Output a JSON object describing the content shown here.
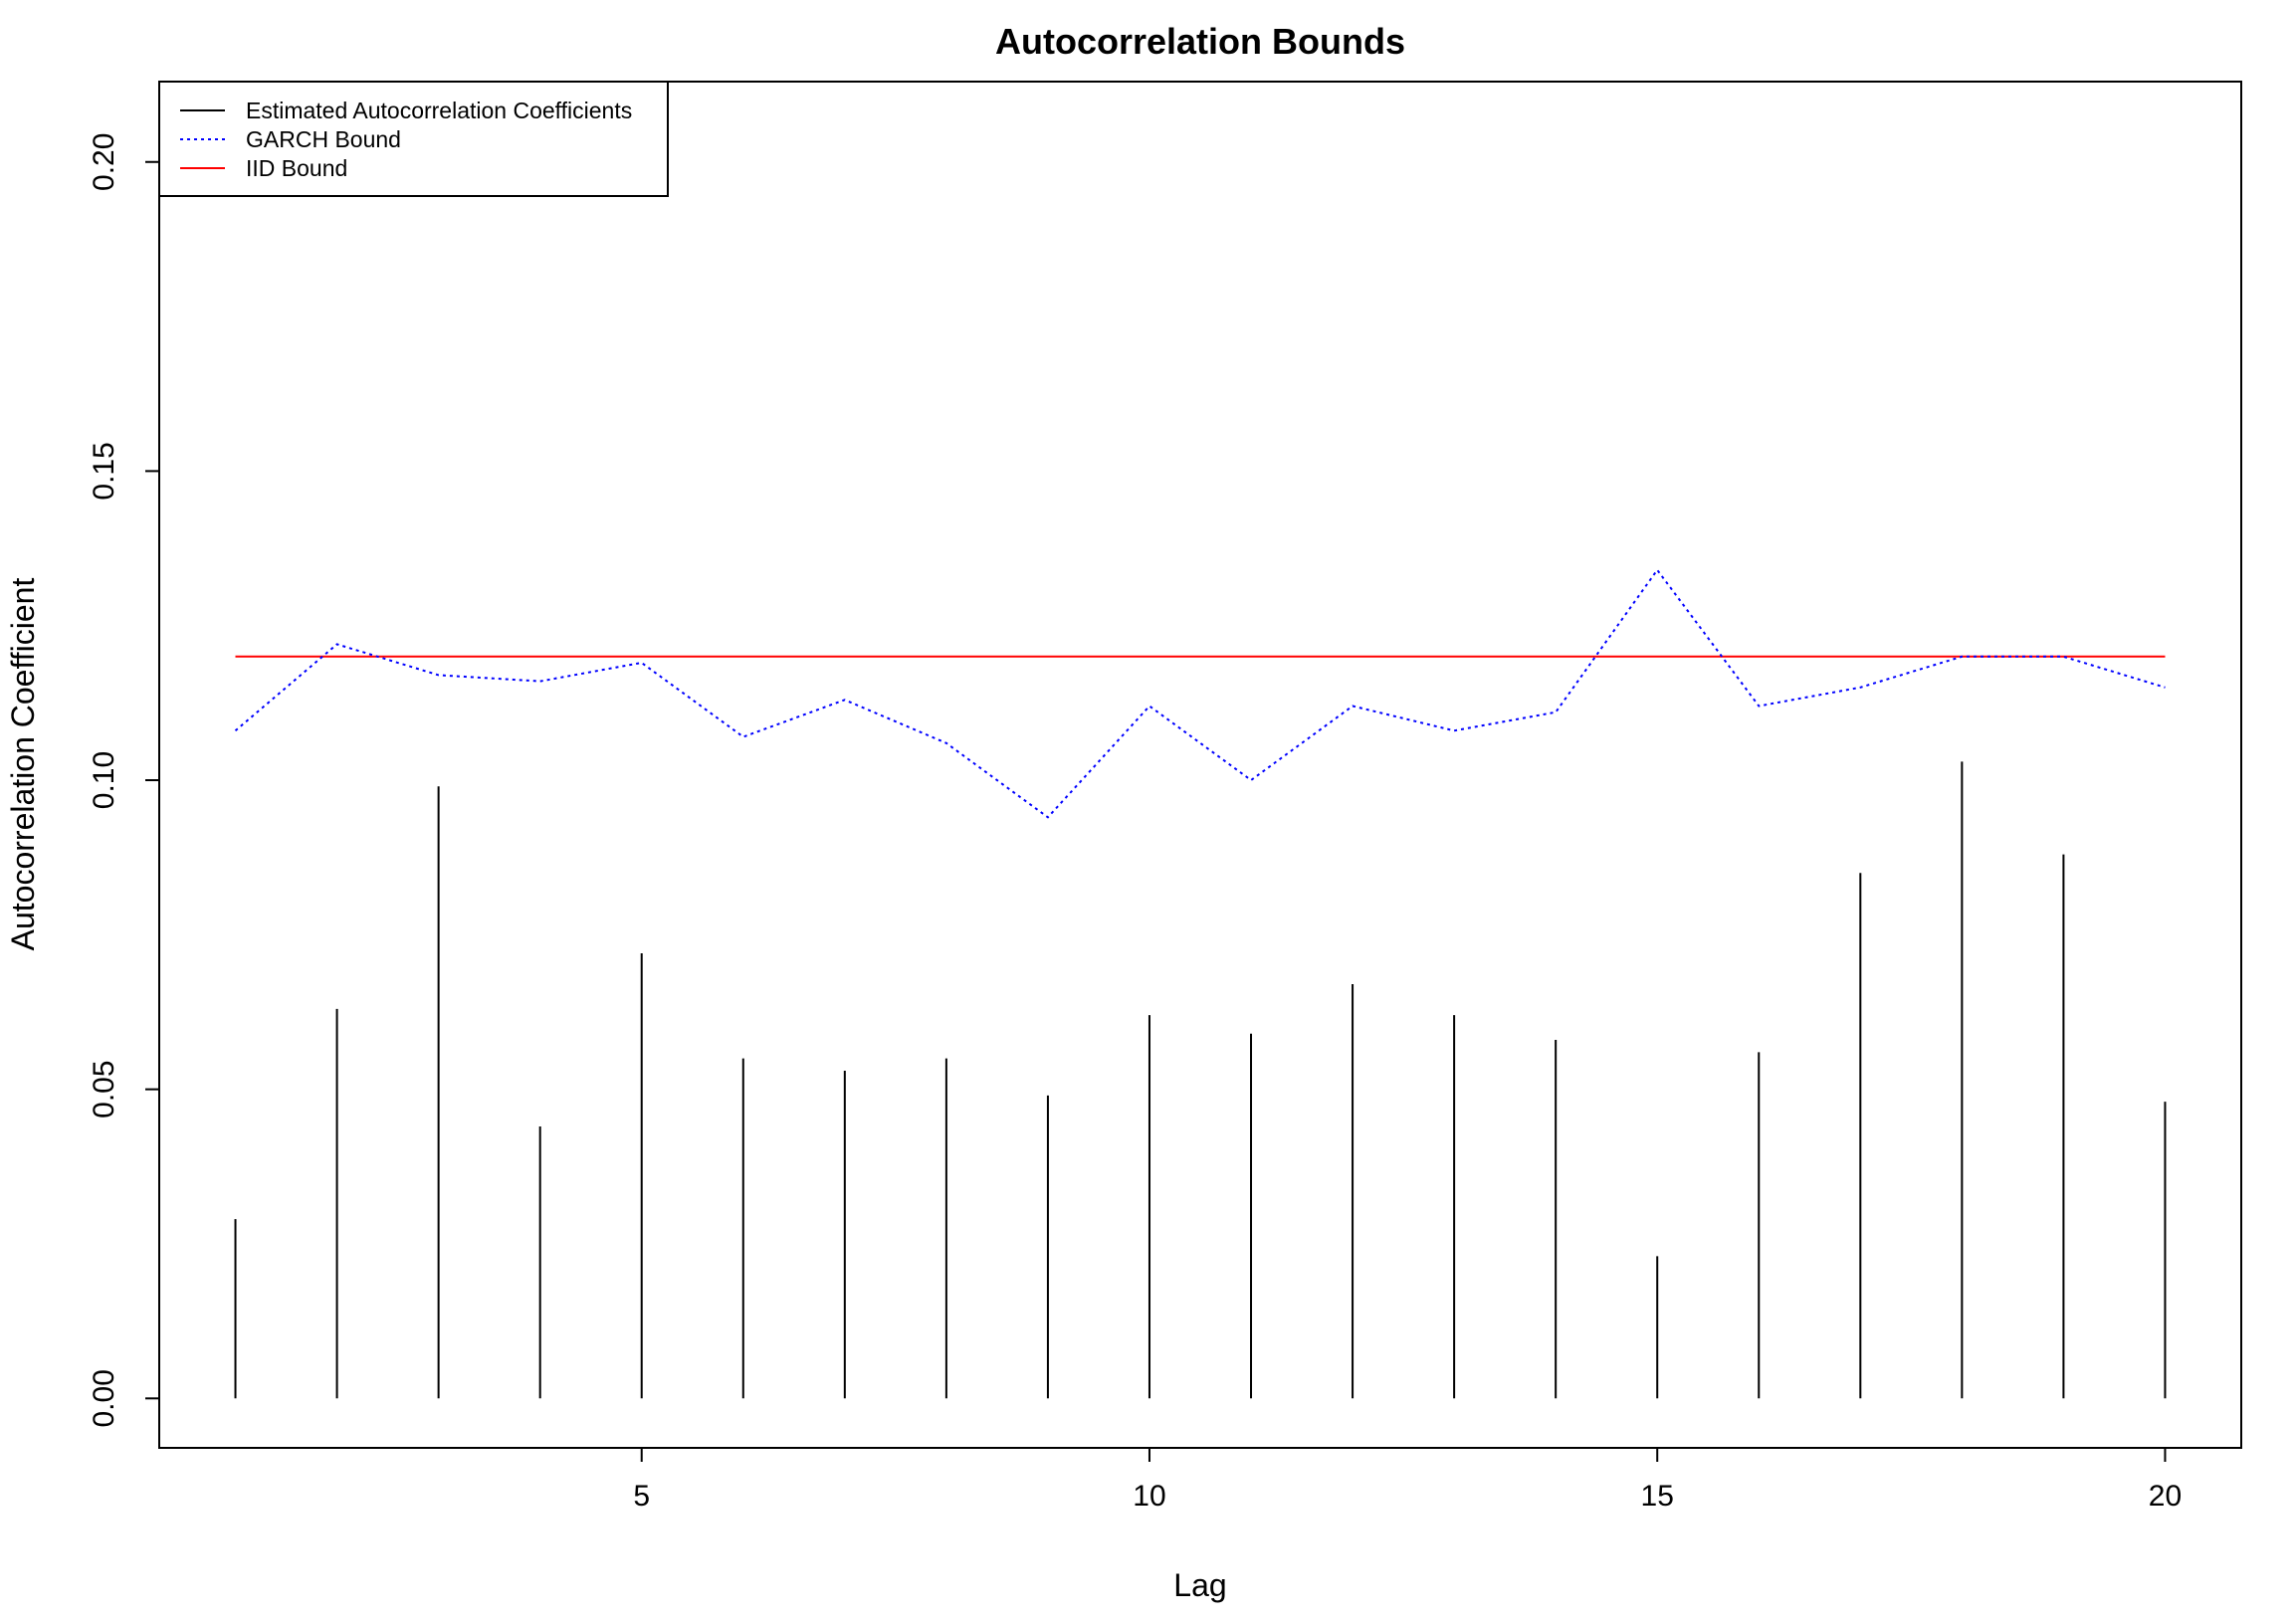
{
  "chart_data": {
    "type": "bar",
    "title": "Autocorrelation Bounds",
    "xlabel": "Lag",
    "ylabel": "Autocorrelation Coefficient",
    "xlim": [
      0.25,
      20.75
    ],
    "ylim": [
      -0.008,
      0.213
    ],
    "x_ticks": [
      5,
      10,
      15,
      20
    ],
    "y_ticks": [
      0.0,
      0.05,
      0.1,
      0.15,
      0.2
    ],
    "y_tick_labels": [
      "0.00",
      "0.05",
      "0.10",
      "0.15",
      "0.20"
    ],
    "grid": false,
    "legend_position": "top-left",
    "lags": [
      1,
      2,
      3,
      4,
      5,
      6,
      7,
      8,
      9,
      10,
      11,
      12,
      13,
      14,
      15,
      16,
      17,
      18,
      19,
      20
    ],
    "series": [
      {
        "name": "Estimated Autocorrelation Coefficients",
        "style": "vertical-lines",
        "color": "#000000",
        "values": [
          0.029,
          0.063,
          0.099,
          0.044,
          0.072,
          0.055,
          0.053,
          0.055,
          0.049,
          0.062,
          0.059,
          0.067,
          0.062,
          0.058,
          0.023,
          0.056,
          0.085,
          0.103,
          0.088,
          0.048
        ]
      },
      {
        "name": "GARCH Bound",
        "style": "dotted",
        "color": "#0000ff",
        "values": [
          0.108,
          0.122,
          0.117,
          0.116,
          0.119,
          0.107,
          0.113,
          0.106,
          0.094,
          0.112,
          0.1,
          0.112,
          0.108,
          0.111,
          0.134,
          0.112,
          0.115,
          0.12,
          0.12,
          0.115
        ]
      },
      {
        "name": "IID Bound",
        "style": "solid",
        "color": "#ff0000",
        "values": [
          0.12,
          0.12,
          0.12,
          0.12,
          0.12,
          0.12,
          0.12,
          0.12,
          0.12,
          0.12,
          0.12,
          0.12,
          0.12,
          0.12,
          0.12,
          0.12,
          0.12,
          0.12,
          0.12,
          0.12
        ]
      }
    ]
  }
}
